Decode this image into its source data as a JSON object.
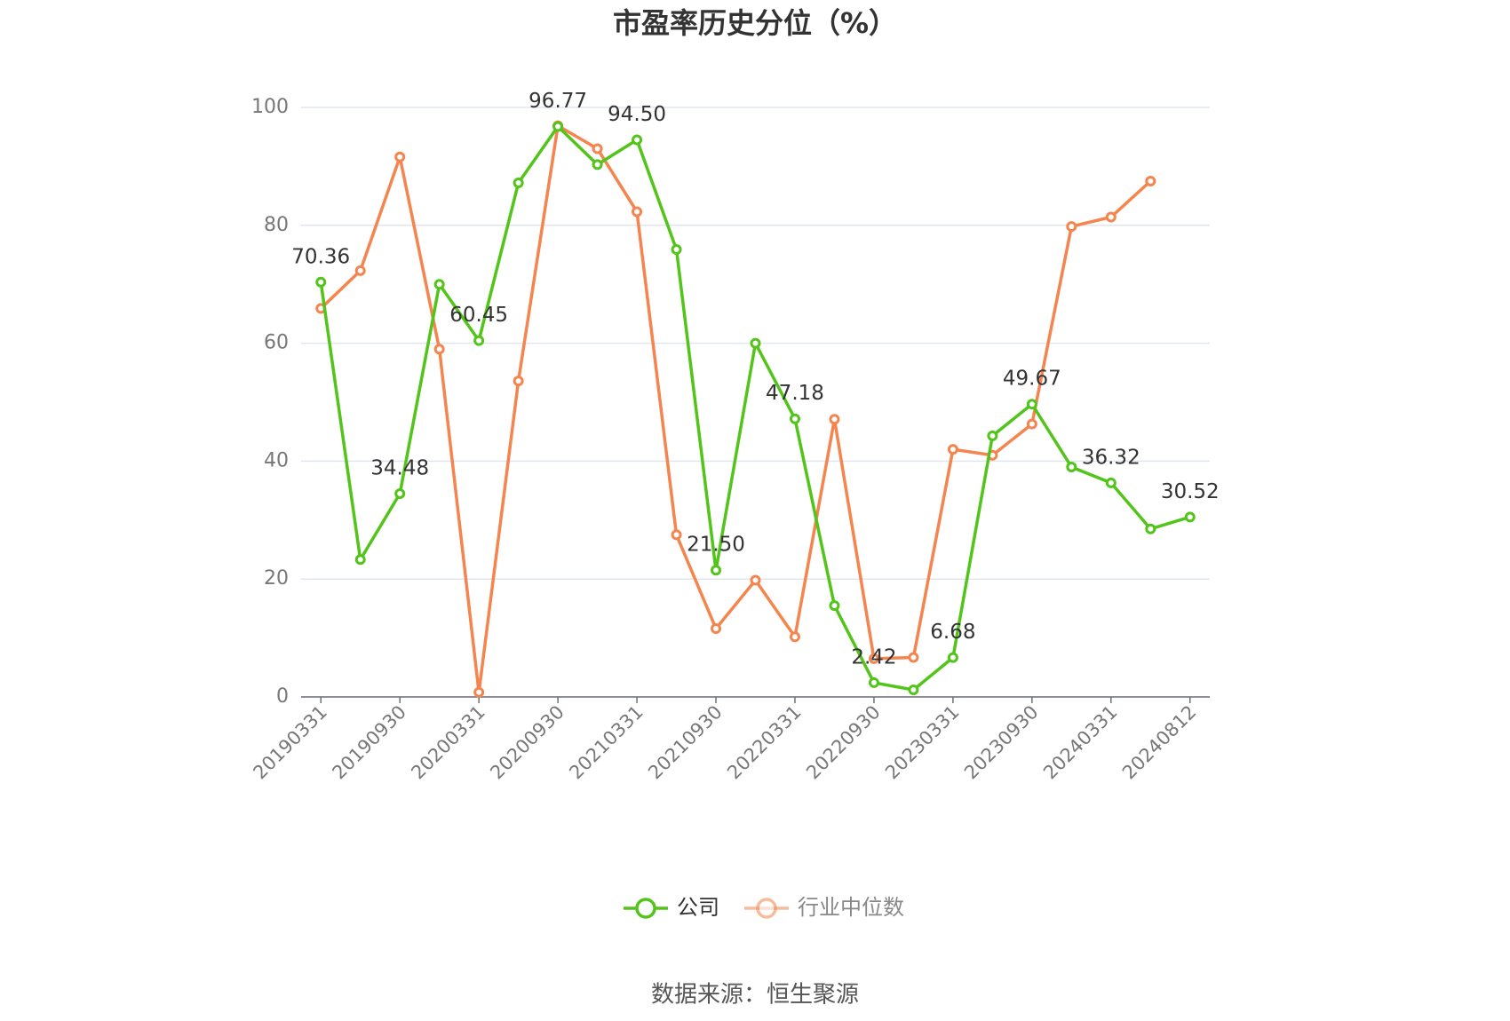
{
  "chart_data": {
    "type": "line",
    "title": "市盈率历史分位（%）",
    "source": "数据来源：恒生聚源",
    "categories": [
      "20190331",
      null,
      "20190930",
      null,
      "20200331",
      null,
      "20200930",
      null,
      "20210331",
      null,
      "20210930",
      null,
      "20220331",
      null,
      "20220930",
      null,
      "20230331",
      null,
      "20230930",
      null,
      "20240331",
      null,
      "20240812"
    ],
    "series": [
      {
        "name": "公司",
        "color": "#52c41a",
        "values": [
          70.36,
          23.3,
          34.48,
          70.0,
          60.45,
          87.2,
          96.77,
          90.3,
          94.5,
          75.9,
          21.5,
          60.0,
          47.18,
          15.5,
          2.42,
          1.2,
          6.68,
          44.3,
          49.67,
          39.0,
          36.32,
          28.5,
          30.52
        ],
        "value_labels": [
          "70.36",
          null,
          "34.48",
          null,
          "60.45",
          null,
          "96.77",
          null,
          "94.50",
          null,
          "21.50",
          null,
          "47.18",
          null,
          "2.42",
          null,
          "6.68",
          null,
          "49.67",
          null,
          "36.32",
          null,
          "30.52"
        ]
      },
      {
        "name": "行业中位数",
        "color": "#f5854f",
        "values": [
          65.9,
          72.3,
          91.6,
          59.0,
          0.8,
          53.6,
          96.9,
          93.0,
          82.3,
          27.5,
          11.6,
          19.8,
          10.2,
          47.1,
          6.5,
          6.7,
          42.0,
          41.0,
          46.3,
          79.8,
          81.4,
          87.5,
          null
        ]
      }
    ],
    "ylim": [
      0,
      100
    ],
    "yticks": [
      0,
      20,
      40,
      60,
      80,
      100
    ],
    "grid": true
  }
}
